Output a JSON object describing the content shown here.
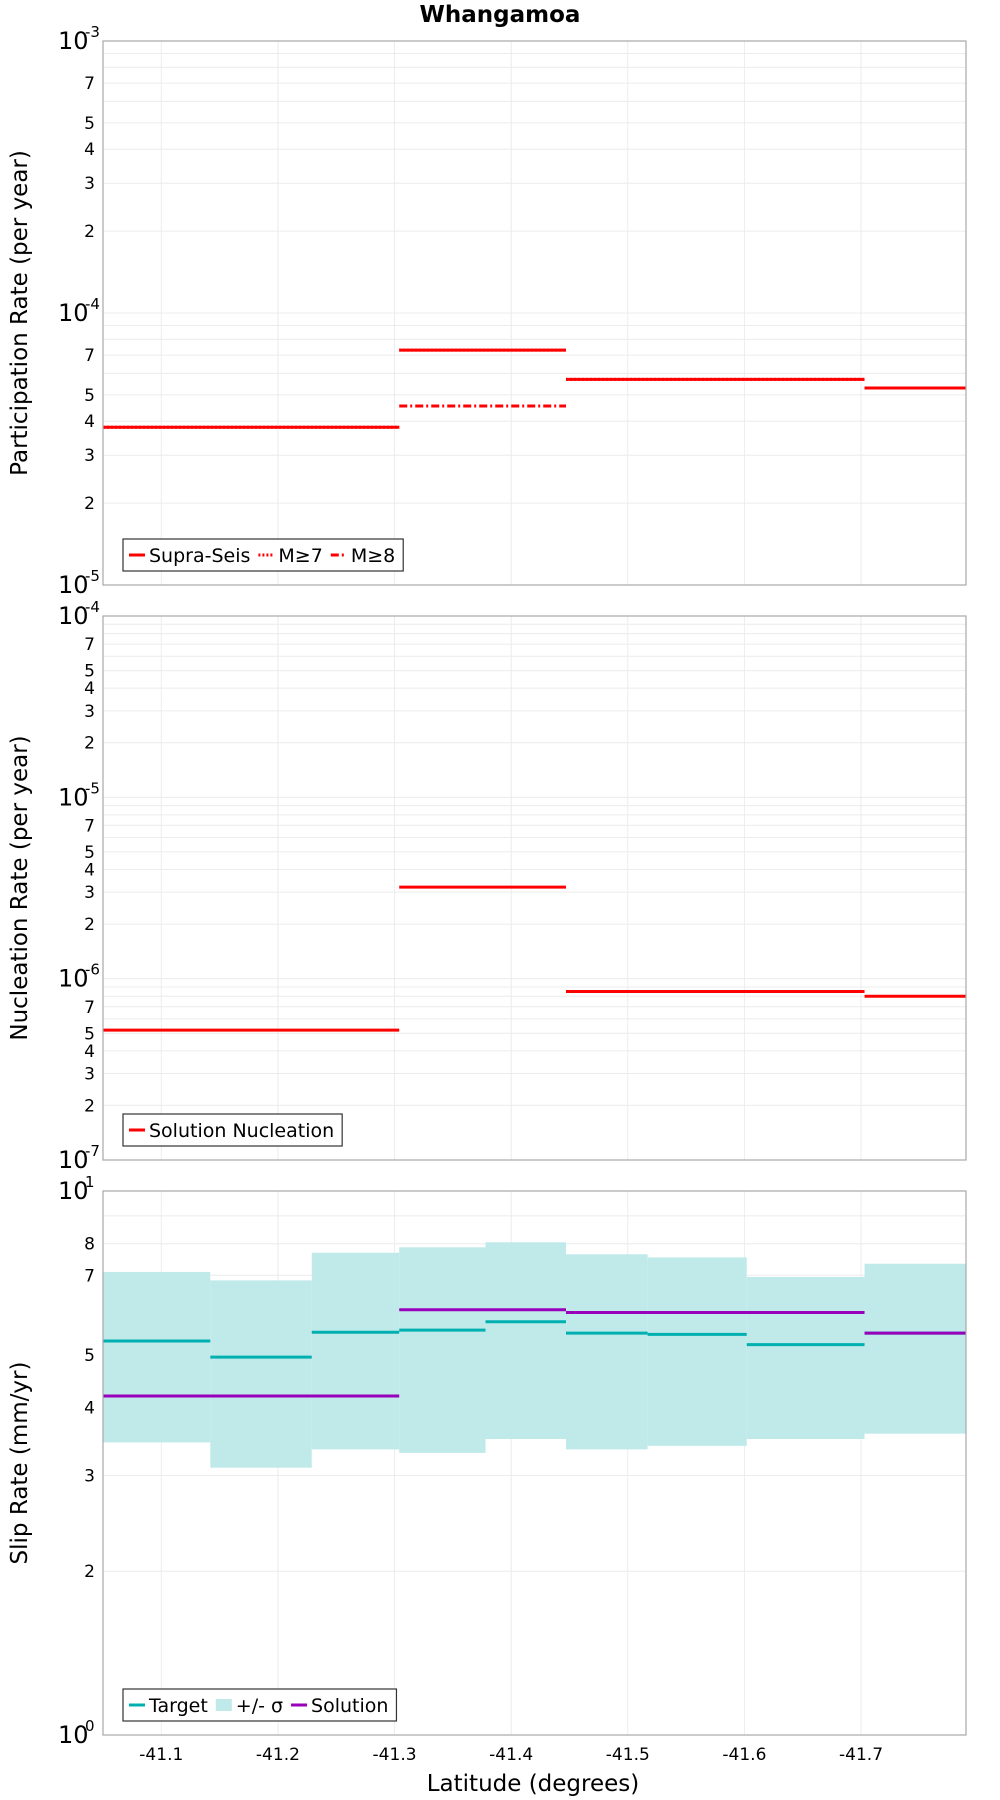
{
  "chart_data": {
    "title": "Whangamoa",
    "xlabel": "Latitude (degrees)",
    "xlim": [
      -41.05,
      -41.79
    ],
    "xticks": [
      "-41.1",
      "-41.2",
      "-41.3",
      "-41.4",
      "-41.5",
      "-41.6",
      "-41.7"
    ],
    "grid": true,
    "panels": [
      {
        "type": "line",
        "ylabel": "Participation Rate (per year)",
        "yscale": "log",
        "ylim": [
          1e-05,
          0.001
        ],
        "legend_position": "bottom-left",
        "legend": [
          "Supra-Seis",
          "M≥7",
          "M≥8"
        ],
        "series": [
          {
            "name": "Supra-Seis",
            "color": "#ff0000",
            "style": "solid",
            "segments": [
              [
                -41.05,
                -41.304,
                3.8e-05
              ],
              [
                -41.304,
                -41.447,
                7.3e-05
              ],
              [
                -41.447,
                -41.703,
                5.7e-05
              ],
              [
                -41.703,
                -41.79,
                5.3e-05
              ]
            ]
          },
          {
            "name": "M≥7",
            "color": "#ff0000",
            "style": "dotted",
            "segments": [
              [
                -41.05,
                -41.304,
                3.8e-05
              ],
              [
                -41.304,
                -41.447,
                7.3e-05
              ],
              [
                -41.447,
                -41.703,
                5.7e-05
              ],
              [
                -41.703,
                -41.79,
                5.3e-05
              ]
            ]
          },
          {
            "name": "M≥8",
            "color": "#ff0000",
            "style": "dashdot",
            "segments": [
              [
                -41.304,
                -41.447,
                4.55e-05
              ]
            ]
          }
        ]
      },
      {
        "type": "line",
        "ylabel": "Nucleation Rate (per year)",
        "yscale": "log",
        "ylim": [
          1e-07,
          0.0001
        ],
        "legend_position": "bottom-left",
        "legend": [
          "Solution Nucleation"
        ],
        "series": [
          {
            "name": "Solution Nucleation",
            "color": "#ff0000",
            "style": "solid",
            "segments": [
              [
                -41.05,
                -41.304,
                5.2e-07
              ],
              [
                -41.304,
                -41.447,
                3.2e-06
              ],
              [
                -41.447,
                -41.703,
                8.5e-07
              ],
              [
                -41.703,
                -41.79,
                8e-07
              ]
            ]
          }
        ]
      },
      {
        "type": "line",
        "ylabel": "Slip Rate (mm/yr)",
        "yscale": "log",
        "ylim": [
          1,
          10
        ],
        "legend_position": "bottom-left",
        "legend": [
          "Target",
          "+/- σ",
          "Solution"
        ],
        "series": [
          {
            "name": "Target",
            "color": "#00b0b0",
            "style": "solid",
            "segments": [
              [
                -41.05,
                -41.142,
                5.3
              ],
              [
                -41.142,
                -41.229,
                4.95
              ],
              [
                -41.229,
                -41.304,
                5.5
              ],
              [
                -41.304,
                -41.378,
                5.55
              ],
              [
                -41.378,
                -41.447,
                5.75
              ],
              [
                -41.447,
                -41.517,
                5.48
              ],
              [
                -41.517,
                -41.602,
                5.45
              ],
              [
                -41.602,
                -41.703,
                5.22
              ],
              [
                -41.703,
                -41.79,
                5.48
              ]
            ]
          },
          {
            "name": "+/- σ",
            "color": "#c0eaea",
            "style": "band",
            "segments": [
              [
                -41.05,
                -41.142,
                3.45,
                7.1
              ],
              [
                -41.142,
                -41.229,
                3.1,
                6.85
              ],
              [
                -41.229,
                -41.304,
                3.35,
                7.7
              ],
              [
                -41.304,
                -41.378,
                3.3,
                7.88
              ],
              [
                -41.378,
                -41.447,
                3.5,
                8.05
              ],
              [
                -41.447,
                -41.517,
                3.35,
                7.65
              ],
              [
                -41.517,
                -41.602,
                3.4,
                7.55
              ],
              [
                -41.602,
                -41.703,
                3.5,
                6.95
              ],
              [
                -41.703,
                -41.79,
                3.58,
                7.35
              ]
            ]
          },
          {
            "name": "Solution",
            "color": "#9900bb",
            "style": "solid",
            "segments": [
              [
                -41.05,
                -41.304,
                4.2
              ],
              [
                -41.304,
                -41.447,
                6.05
              ],
              [
                -41.447,
                -41.703,
                5.98
              ],
              [
                -41.703,
                -41.79,
                5.48
              ]
            ]
          }
        ]
      }
    ]
  }
}
